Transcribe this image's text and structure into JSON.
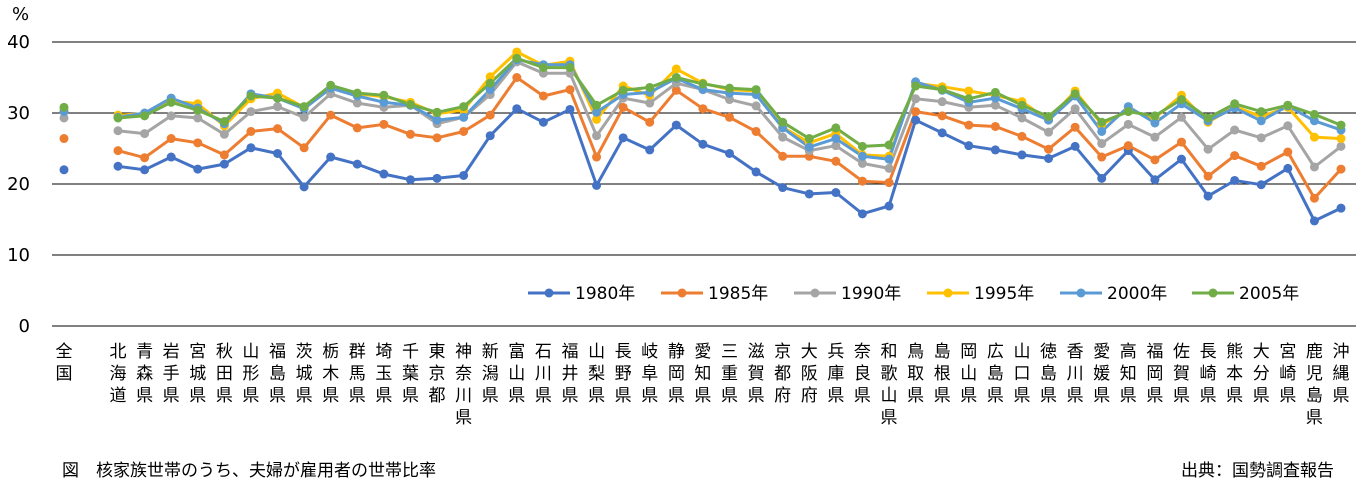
{
  "caption": "図　核家族世帯のうち、夫婦が雇用者の世帯比率",
  "source": "出典：国勢調査報告",
  "chart_data": {
    "type": "line",
    "title": "",
    "ylabel": "%",
    "xlabel": "",
    "ylim": [
      0,
      40
    ],
    "yticks": [
      0,
      10,
      20,
      30,
      40
    ],
    "grid": true,
    "legend_position": "bottom-right",
    "categories": [
      "全国",
      "北海道",
      "青森県",
      "岩手県",
      "宮城県",
      "秋田県",
      "山形県",
      "福島県",
      "茨城県",
      "栃木県",
      "群馬県",
      "埼玉県",
      "千葉県",
      "東京都",
      "神奈川県",
      "新潟県",
      "富山県",
      "石川県",
      "福井県",
      "山梨県",
      "長野県",
      "岐阜県",
      "静岡県",
      "愛知県",
      "三重県",
      "滋賀県",
      "京都府",
      "大阪府",
      "兵庫県",
      "奈良県",
      "和歌山県",
      "鳥取県",
      "島根県",
      "岡山県",
      "広島県",
      "山口県",
      "徳島県",
      "香川県",
      "愛媛県",
      "高知県",
      "福岡県",
      "佐賀県",
      "長崎県",
      "熊本県",
      "大分県",
      "宮崎県",
      "鹿児島県",
      "沖縄県"
    ],
    "series": [
      {
        "name": "1980年",
        "color": "#4472c4",
        "values": [
          22.0,
          22.5,
          22.0,
          23.8,
          22.1,
          22.8,
          25.1,
          24.3,
          19.6,
          23.8,
          22.8,
          21.4,
          20.6,
          20.8,
          21.2,
          26.8,
          30.6,
          28.7,
          30.5,
          19.8,
          26.5,
          24.8,
          28.3,
          25.6,
          24.3,
          21.7,
          19.5,
          18.6,
          18.8,
          15.8,
          16.9,
          29.0,
          27.2,
          25.4,
          24.8,
          24.1,
          23.6,
          25.3,
          20.8,
          24.7,
          20.6,
          23.5,
          18.3,
          20.5,
          19.9,
          22.2,
          14.8,
          16.6
        ]
      },
      {
        "name": "1985年",
        "color": "#ed7d31",
        "values": [
          26.4,
          24.7,
          23.7,
          26.4,
          25.8,
          24.1,
          27.4,
          27.8,
          25.1,
          29.7,
          27.9,
          28.4,
          27.0,
          26.5,
          27.4,
          29.7,
          35.0,
          32.4,
          33.3,
          23.8,
          30.8,
          28.7,
          33.2,
          30.6,
          29.4,
          27.4,
          23.9,
          23.9,
          23.2,
          20.4,
          20.2,
          30.2,
          29.6,
          28.3,
          28.1,
          26.7,
          24.9,
          28.0,
          23.8,
          25.4,
          23.4,
          25.9,
          21.1,
          24.0,
          22.5,
          24.5,
          18.0,
          22.1
        ]
      },
      {
        "name": "1990年",
        "color": "#a5a5a5",
        "values": [
          29.3,
          27.5,
          27.1,
          29.6,
          29.3,
          27.0,
          30.2,
          30.9,
          29.4,
          32.7,
          31.4,
          30.8,
          31.1,
          28.5,
          29.4,
          32.6,
          37.2,
          35.6,
          35.6,
          26.8,
          32.1,
          31.4,
          34.2,
          33.3,
          31.9,
          31.0,
          26.6,
          24.7,
          25.4,
          22.9,
          22.2,
          32.0,
          31.6,
          30.8,
          31.1,
          29.3,
          27.3,
          30.6,
          25.7,
          28.4,
          26.6,
          29.4,
          24.9,
          27.6,
          26.5,
          28.2,
          22.4,
          25.3
        ]
      },
      {
        "name": "1995年",
        "color": "#ffc000",
        "values": [
          30.3,
          29.7,
          29.9,
          31.7,
          31.3,
          28.2,
          32.0,
          32.8,
          30.8,
          33.5,
          32.7,
          32.3,
          31.5,
          29.9,
          30.4,
          35.1,
          38.6,
          36.7,
          37.3,
          29.1,
          33.8,
          32.5,
          36.2,
          34.2,
          33.3,
          33.1,
          28.0,
          25.8,
          27.1,
          24.1,
          23.9,
          34.2,
          33.7,
          33.1,
          32.5,
          31.6,
          29.0,
          33.1,
          28.4,
          30.4,
          29.3,
          32.5,
          28.7,
          30.9,
          29.5,
          30.8,
          26.6,
          26.4
        ]
      },
      {
        "name": "2000年",
        "color": "#5b9bd5",
        "values": [
          30.2,
          29.4,
          30.0,
          32.1,
          30.7,
          28.5,
          32.7,
          32.1,
          30.6,
          33.5,
          32.4,
          31.5,
          31.1,
          29.0,
          29.4,
          33.3,
          37.5,
          36.8,
          36.8,
          30.1,
          32.6,
          32.9,
          34.9,
          33.3,
          32.8,
          32.6,
          27.9,
          25.2,
          26.4,
          23.9,
          23.5,
          34.4,
          33.2,
          31.5,
          32.1,
          30.6,
          29.0,
          32.4,
          27.4,
          30.9,
          28.6,
          31.3,
          28.9,
          30.7,
          28.9,
          31.0,
          28.9,
          27.6
        ]
      },
      {
        "name": "2005年",
        "color": "#70ad47",
        "values": [
          30.8,
          29.3,
          29.6,
          31.5,
          30.4,
          28.8,
          32.4,
          32.1,
          30.9,
          33.9,
          32.8,
          32.5,
          31.2,
          30.1,
          30.9,
          34.2,
          37.7,
          36.4,
          36.4,
          31.1,
          33.2,
          33.6,
          35.0,
          34.1,
          33.5,
          33.3,
          28.7,
          26.4,
          27.9,
          25.3,
          25.5,
          33.8,
          33.3,
          32.0,
          32.9,
          31.1,
          29.5,
          32.7,
          28.7,
          30.2,
          29.6,
          31.9,
          29.3,
          31.3,
          30.2,
          31.1,
          29.8,
          28.3
        ]
      }
    ]
  }
}
